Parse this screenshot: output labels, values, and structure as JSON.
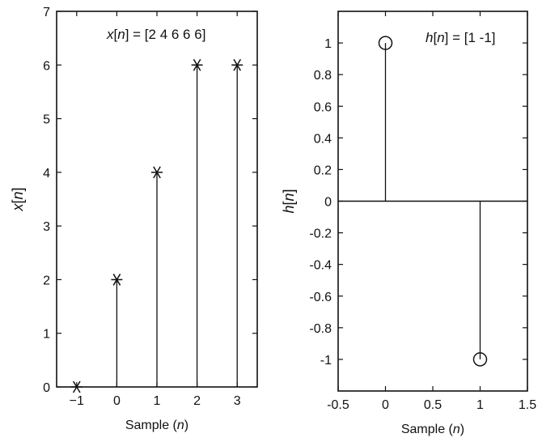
{
  "chart_data": [
    {
      "type": "stem",
      "marker": "asterisk",
      "title": "",
      "annotation": "x[n] = [2 4 6 6 6]",
      "xlabel": "Sample (n)",
      "ylabel": "x[n]",
      "xlim": [
        -1.5,
        3.5
      ],
      "ylim": [
        0,
        7
      ],
      "xticks": [
        "−1",
        "0",
        "1",
        "2",
        "3"
      ],
      "yticks": [
        "0",
        "1",
        "2",
        "3",
        "4",
        "5",
        "6",
        "7"
      ],
      "x": [
        -1,
        0,
        1,
        2,
        3
      ],
      "y": [
        0,
        2,
        4,
        6,
        6
      ],
      "grid": false
    },
    {
      "type": "stem",
      "marker": "circle",
      "title": "",
      "annotation": "h[n] = [1 -1]",
      "xlabel": "Sample (n)",
      "ylabel": "h[n]",
      "xlim": [
        -0.5,
        1.5
      ],
      "ylim": [
        -1.2,
        1.2
      ],
      "xticks": [
        "-0.5",
        "0",
        "0.5",
        "1",
        "1.5"
      ],
      "yticks": [
        "1",
        "0.8",
        "0.6",
        "0.4",
        "0.2",
        "0",
        "-0.2",
        "-0.4",
        "-0.6",
        "-0.8",
        "-1"
      ],
      "x": [
        0,
        1
      ],
      "y": [
        1,
        -1
      ],
      "grid": false
    }
  ]
}
